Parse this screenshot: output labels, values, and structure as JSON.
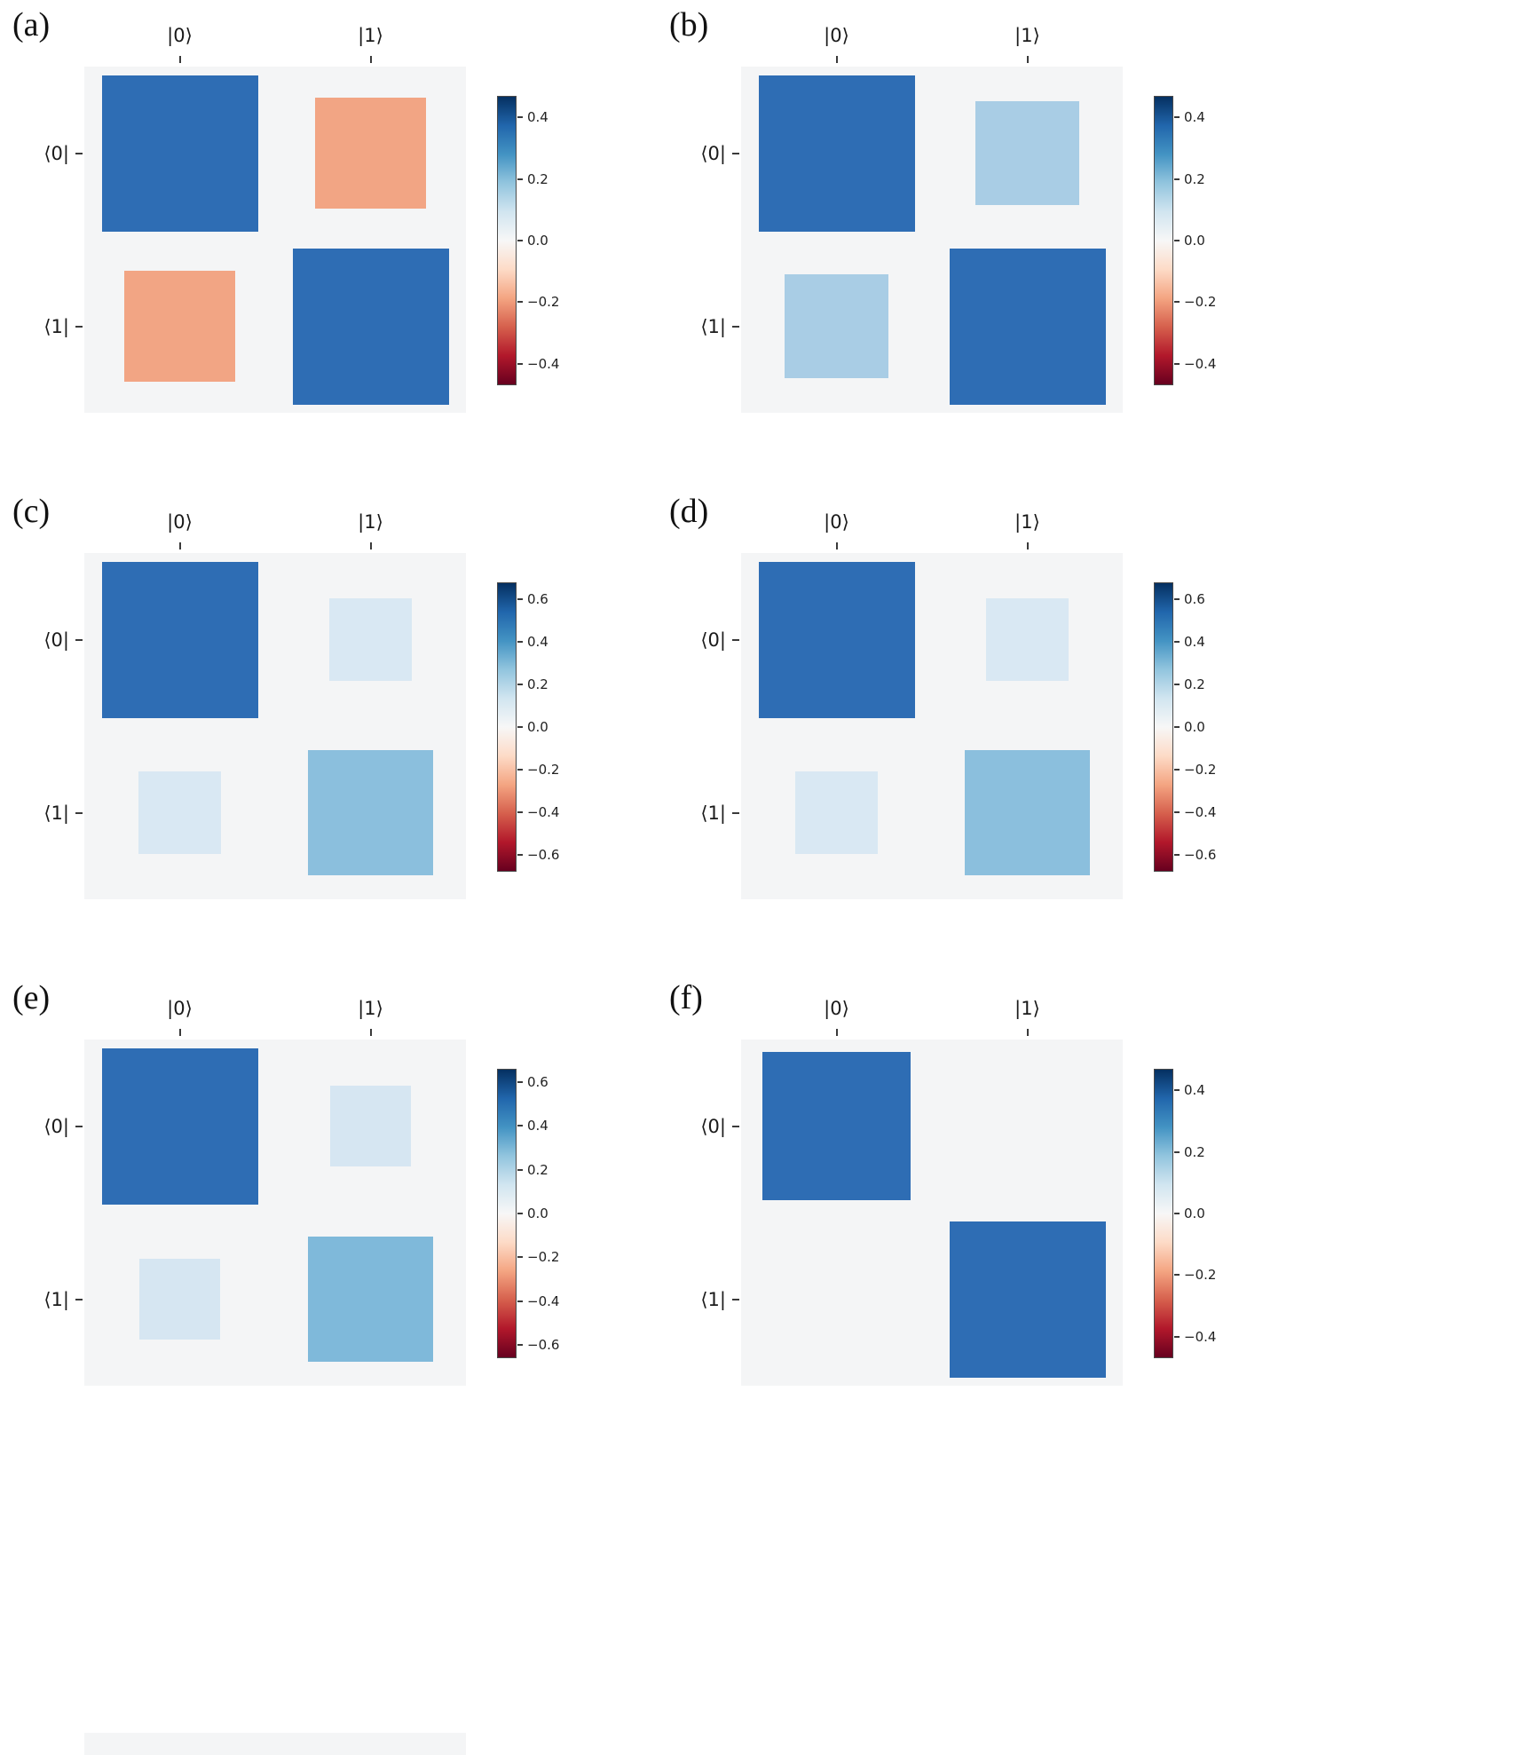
{
  "figure": {
    "background": "#ffffff",
    "plot_background": "#f4f5f6",
    "colorbar_gradient_top_to_bottom": [
      "#053061",
      "#2166ac",
      "#4393c3",
      "#92c5de",
      "#d1e5f0",
      "#f7f7f7",
      "#fddbc7",
      "#f4a582",
      "#d6604d",
      "#b2182b",
      "#67001f"
    ],
    "cropped_partial_panel_visible_bottom_left": true
  },
  "chart_data": [
    {
      "id": "a",
      "type": "heatmap",
      "panel_label": "(a)",
      "col_labels": [
        "|0⟩",
        "|1⟩"
      ],
      "row_labels": [
        "⟨0|",
        "⟨1|"
      ],
      "values": [
        [
          0.5,
          -0.25
        ],
        [
          -0.25,
          0.5
        ]
      ],
      "cell_colors": [
        [
          "#2e6db4",
          "#f2a584"
        ],
        [
          "#f2a584",
          "#2e6db4"
        ]
      ],
      "vlim": [
        -0.47,
        0.47
      ],
      "colorbar_ticks": [
        {
          "v": 0.4,
          "label": "0.4"
        },
        {
          "v": 0.2,
          "label": "0.2"
        },
        {
          "v": 0.0,
          "label": "0.0"
        },
        {
          "v": -0.2,
          "label": "−0.2"
        },
        {
          "v": -0.4,
          "label": "−0.4"
        }
      ],
      "layout": {
        "square_area_proportional_to": "abs(value)",
        "legend": "colorbar-right",
        "grid": false
      }
    },
    {
      "id": "b",
      "type": "heatmap",
      "panel_label": "(b)",
      "col_labels": [
        "|0⟩",
        "|1⟩"
      ],
      "row_labels": [
        "⟨0|",
        "⟨1|"
      ],
      "values": [
        [
          0.5,
          0.22
        ],
        [
          0.22,
          0.5
        ]
      ],
      "cell_colors": [
        [
          "#2e6db4",
          "#a9cde5"
        ],
        [
          "#a9cde5",
          "#2e6db4"
        ]
      ],
      "vlim": [
        -0.47,
        0.47
      ],
      "colorbar_ticks": [
        {
          "v": 0.4,
          "label": "0.4"
        },
        {
          "v": 0.2,
          "label": "0.2"
        },
        {
          "v": 0.0,
          "label": "0.0"
        },
        {
          "v": -0.2,
          "label": "−0.2"
        },
        {
          "v": -0.4,
          "label": "−0.4"
        }
      ],
      "layout": {
        "square_area_proportional_to": "abs(value)",
        "legend": "colorbar-right",
        "grid": false
      }
    },
    {
      "id": "c",
      "type": "heatmap",
      "panel_label": "(c)",
      "col_labels": [
        "|0⟩",
        "|1⟩"
      ],
      "row_labels": [
        "⟨0|",
        "⟨1|"
      ],
      "values": [
        [
          0.65,
          0.18
        ],
        [
          0.18,
          0.42
        ]
      ],
      "cell_colors": [
        [
          "#2e6db4",
          "#d9e8f3"
        ],
        [
          "#d9e8f3",
          "#8bbfdd"
        ]
      ],
      "vlim": [
        -0.68,
        0.68
      ],
      "colorbar_ticks": [
        {
          "v": 0.6,
          "label": "0.6"
        },
        {
          "v": 0.4,
          "label": "0.4"
        },
        {
          "v": 0.2,
          "label": "0.2"
        },
        {
          "v": 0.0,
          "label": "0.0"
        },
        {
          "v": -0.2,
          "label": "−0.2"
        },
        {
          "v": -0.4,
          "label": "−0.4"
        },
        {
          "v": -0.6,
          "label": "−0.6"
        }
      ],
      "layout": {
        "square_area_proportional_to": "abs(value)",
        "legend": "colorbar-right",
        "grid": false
      }
    },
    {
      "id": "d",
      "type": "heatmap",
      "panel_label": "(d)",
      "col_labels": [
        "|0⟩",
        "|1⟩"
      ],
      "row_labels": [
        "⟨0|",
        "⟨1|"
      ],
      "values": [
        [
          0.65,
          0.18
        ],
        [
          0.18,
          0.42
        ]
      ],
      "cell_colors": [
        [
          "#2e6db4",
          "#d9e8f3"
        ],
        [
          "#d9e8f3",
          "#8bbfdd"
        ]
      ],
      "vlim": [
        -0.68,
        0.68
      ],
      "colorbar_ticks": [
        {
          "v": 0.6,
          "label": "0.6"
        },
        {
          "v": 0.4,
          "label": "0.4"
        },
        {
          "v": 0.2,
          "label": "0.2"
        },
        {
          "v": 0.0,
          "label": "0.0"
        },
        {
          "v": -0.2,
          "label": "−0.2"
        },
        {
          "v": -0.4,
          "label": "−0.4"
        },
        {
          "v": -0.6,
          "label": "−0.6"
        }
      ],
      "layout": {
        "square_area_proportional_to": "abs(value)",
        "legend": "colorbar-right",
        "grid": false
      }
    },
    {
      "id": "e",
      "type": "heatmap",
      "panel_label": "(e)",
      "col_labels": [
        "|0⟩",
        "|1⟩"
      ],
      "row_labels": [
        "⟨0|",
        "⟨1|"
      ],
      "values": [
        [
          0.63,
          0.17
        ],
        [
          0.17,
          0.4
        ]
      ],
      "cell_colors": [
        [
          "#2e6db4",
          "#d6e6f2"
        ],
        [
          "#d6e6f2",
          "#7fb9da"
        ]
      ],
      "vlim": [
        -0.66,
        0.66
      ],
      "colorbar_ticks": [
        {
          "v": 0.6,
          "label": "0.6"
        },
        {
          "v": 0.4,
          "label": "0.4"
        },
        {
          "v": 0.2,
          "label": "0.2"
        },
        {
          "v": 0.0,
          "label": "0.0"
        },
        {
          "v": -0.2,
          "label": "−0.2"
        },
        {
          "v": -0.4,
          "label": "−0.4"
        },
        {
          "v": -0.6,
          "label": "−0.6"
        }
      ],
      "layout": {
        "square_area_proportional_to": "abs(value)",
        "legend": "colorbar-right",
        "grid": false
      }
    },
    {
      "id": "f",
      "type": "heatmap",
      "panel_label": "(f)",
      "col_labels": [
        "|0⟩",
        "|1⟩"
      ],
      "row_labels": [
        "⟨0|",
        "⟨1|"
      ],
      "values": [
        [
          0.45,
          0.0
        ],
        [
          0.0,
          0.5
        ]
      ],
      "cell_colors": [
        [
          "#2e6db4",
          null
        ],
        [
          null,
          "#2e6db4"
        ]
      ],
      "vlim": [
        -0.47,
        0.47
      ],
      "colorbar_ticks": [
        {
          "v": 0.4,
          "label": "0.4"
        },
        {
          "v": 0.2,
          "label": "0.2"
        },
        {
          "v": 0.0,
          "label": "0.0"
        },
        {
          "v": -0.2,
          "label": "−0.2"
        },
        {
          "v": -0.4,
          "label": "−0.4"
        }
      ],
      "layout": {
        "square_area_proportional_to": "abs(value)",
        "legend": "colorbar-right",
        "grid": false
      }
    }
  ]
}
